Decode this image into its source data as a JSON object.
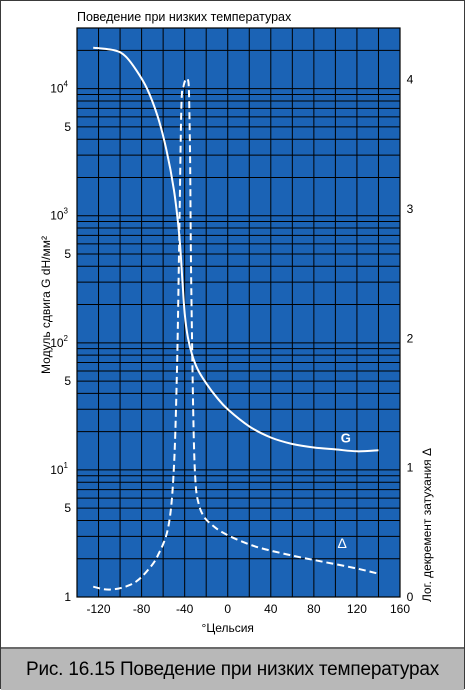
{
  "caption": "Рис. 16.15 Поведение при низких температурах",
  "colors": {
    "plot_bg": "#1b63b5",
    "grid": "#000000",
    "curve": "#ffffff",
    "caption_bg": "#b8b8b8"
  },
  "chart_data": {
    "type": "line",
    "title": "Поведение при низких температурах",
    "xlabel": "°Цельсия",
    "ylabel_left": "Модуль сдвига G dH/мм²",
    "ylabel_right": "Лог. декремент затухания Δ",
    "xlim": [
      -140,
      160
    ],
    "ylim_left": [
      1,
      30000
    ],
    "yscale_left": "log",
    "ylim_right": [
      0,
      4.4
    ],
    "x_ticks": [
      "-120",
      "-80",
      "-40",
      "0",
      "40",
      "80",
      "120",
      "160"
    ],
    "y_left_ticks": [
      {
        "mantissa": "1",
        "exp": ""
      },
      {
        "mantissa": "5",
        "exp": ""
      },
      {
        "mantissa": "10",
        "exp": "1"
      },
      {
        "mantissa": "5",
        "exp": ""
      },
      {
        "mantissa": "10",
        "exp": "2"
      },
      {
        "mantissa": "5",
        "exp": ""
      },
      {
        "mantissa": "10",
        "exp": "3"
      },
      {
        "mantissa": "5",
        "exp": ""
      },
      {
        "mantissa": "10",
        "exp": "4"
      }
    ],
    "y_right_ticks": [
      "0",
      "1",
      "2",
      "3",
      "4"
    ],
    "grid": true,
    "series": [
      {
        "name": "G",
        "axis": "left",
        "x": [
          -125,
          -105,
          -95,
          -85,
          -75,
          -65,
          -57,
          -50,
          -45,
          -42,
          -40,
          -37,
          -33,
          -28,
          -20,
          -10,
          0,
          20,
          40,
          60,
          80,
          100,
          120,
          140
        ],
        "y": [
          21000,
          20000,
          18000,
          14000,
          10000,
          6000,
          3300,
          1600,
          700,
          300,
          170,
          110,
          80,
          62,
          48,
          37,
          30,
          22,
          18,
          16,
          15,
          14.5,
          14,
          14.3
        ]
      },
      {
        "name": "Δ",
        "axis": "right",
        "x": [
          -125,
          -115,
          -105,
          -95,
          -85,
          -75,
          -65,
          -55,
          -50,
          -47,
          -45,
          -43,
          -41,
          -39,
          -37,
          -36,
          -35,
          -34,
          -32,
          -30,
          -27,
          -22,
          -15,
          -5,
          10,
          30,
          60,
          90,
          120,
          140
        ],
        "y": [
          0.08,
          0.06,
          0.06,
          0.08,
          0.12,
          0.2,
          0.32,
          0.55,
          1.0,
          1.8,
          2.8,
          3.8,
          3.95,
          4.0,
          4.0,
          3.9,
          3.4,
          2.5,
          1.4,
          0.9,
          0.72,
          0.62,
          0.56,
          0.5,
          0.44,
          0.38,
          0.32,
          0.27,
          0.22,
          0.18
        ]
      }
    ]
  }
}
